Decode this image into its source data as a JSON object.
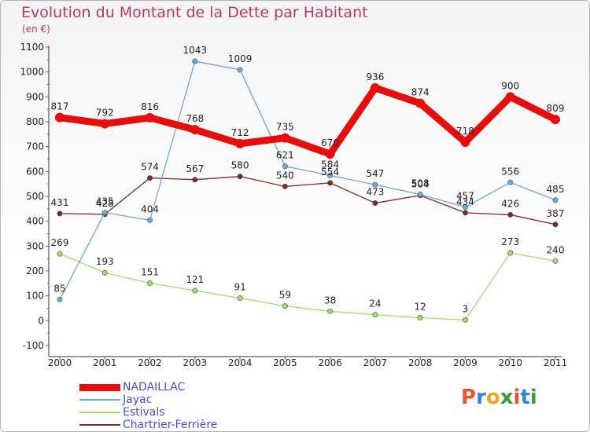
{
  "header": {
    "title": "Evolution du Montant de la Dette par Habitant",
    "subtitle": "(en €)"
  },
  "logo": {
    "text": "Proxiti",
    "colors": [
      "#e8542b",
      "#2a86d8",
      "#f2a321",
      "#3a9f3a",
      "#e8542b",
      "#2a86d8",
      "#3a9f3a"
    ]
  },
  "chart_data": {
    "type": "line",
    "title": "Evolution du Montant de la Dette par Habitant",
    "subtitle": "(en €)",
    "xlabel": "",
    "ylabel": "",
    "x": [
      "2000",
      "2001",
      "2002",
      "2003",
      "2004",
      "2005",
      "2006",
      "2007",
      "2008",
      "2009",
      "2010",
      "2011"
    ],
    "ylim": [
      -100,
      1100
    ],
    "yticks": [
      -100,
      0,
      100,
      200,
      300,
      400,
      500,
      600,
      700,
      800,
      900,
      1000,
      1100
    ],
    "grid": false,
    "legend": "bottom-left",
    "series": [
      {
        "name": "NADAILLAC",
        "color": "#e80d0d",
        "values": [
          817,
          792,
          816,
          768,
          712,
          735,
          670,
          936,
          874,
          718,
          900,
          809
        ]
      },
      {
        "name": "Jayac",
        "color": "#6ea6d6",
        "values": [
          85,
          435,
          404,
          1043,
          1009,
          621,
          584,
          547,
          508,
          457,
          556,
          485
        ]
      },
      {
        "name": "Estivals",
        "color": "#9fdb6a",
        "values": [
          269,
          193,
          151,
          121,
          91,
          59,
          38,
          24,
          12,
          3,
          273,
          240
        ]
      },
      {
        "name": "Chartrier-Ferrière",
        "color": "#7a2a2a",
        "values": [
          431,
          428,
          574,
          567,
          580,
          540,
          554,
          473,
          504,
          434,
          426,
          387
        ]
      }
    ]
  }
}
